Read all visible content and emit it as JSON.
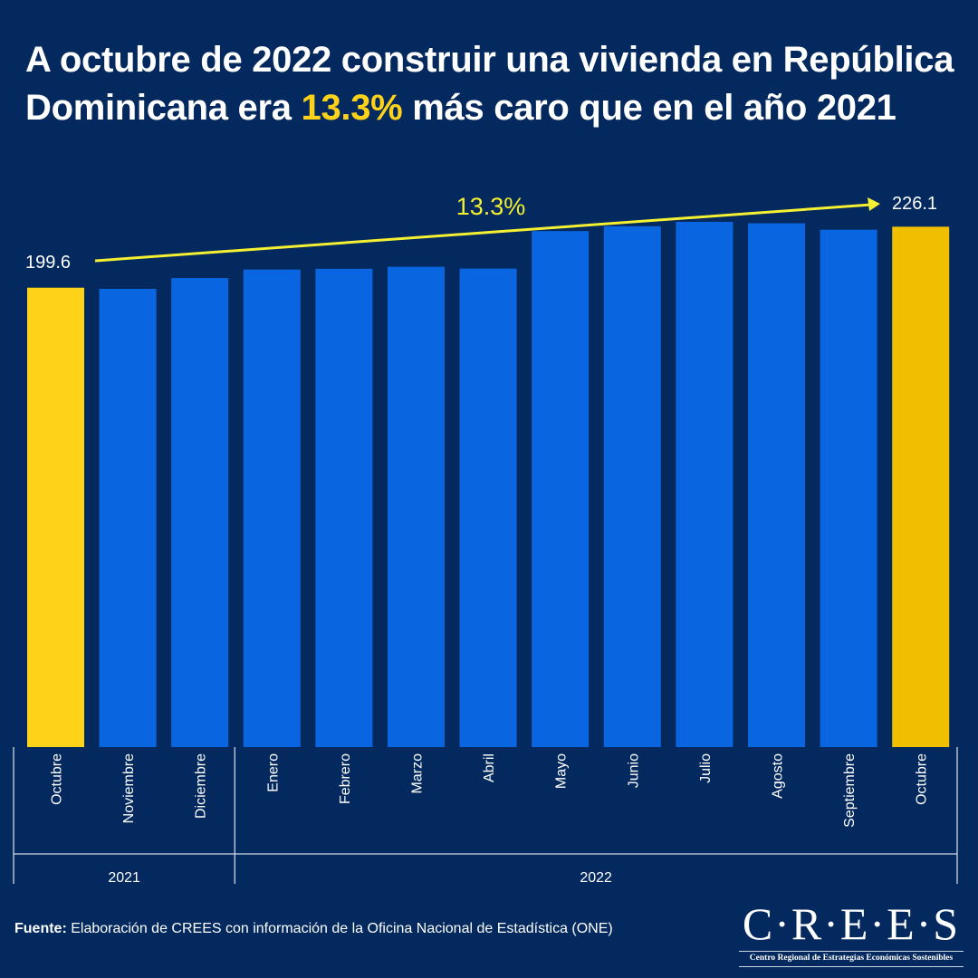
{
  "title": {
    "before": "A octubre de 2022 construir una vivienda en República Dominicana era ",
    "highlight": "13.3%",
    "after": " más caro que en el año 2021"
  },
  "chart_data": {
    "type": "bar",
    "categories": [
      "Octubre",
      "Noviembre",
      "Diciembre",
      "Enero",
      "Febrero",
      "Marzo",
      "Abril",
      "Mayo",
      "Junio",
      "Julio",
      "Agosto",
      "Septiembre",
      "Octubre"
    ],
    "groups": [
      {
        "label": "2021",
        "count": 3
      },
      {
        "label": "2022",
        "count": 10
      }
    ],
    "values": [
      199.6,
      199.1,
      203.8,
      207.5,
      207.8,
      208.7,
      207.9,
      224.2,
      226.3,
      228.2,
      227.6,
      224.8,
      226.1
    ],
    "highlighted": [
      0,
      12
    ],
    "data_labels": {
      "first": "199.6",
      "last": "226.1"
    },
    "annotation": "13.3%",
    "ylim": [
      0,
      230
    ],
    "colors": {
      "bar": "#0a66e0",
      "highlight_first": "#ffd21a",
      "highlight_last": "#f0c000",
      "arrow": "#f5f032",
      "background": "#03295e"
    }
  },
  "source": {
    "label": "Fuente:",
    "text": " Elaboración de CREES con información de la Oficina Nacional de Estadística (ONE)"
  },
  "logo": {
    "main": "C·R·E·E·S",
    "sub": "Centro Regional de Estrategias Económicas Sostenibles"
  }
}
